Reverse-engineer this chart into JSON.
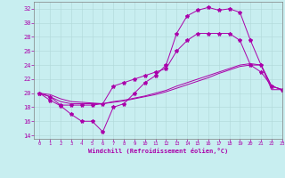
{
  "xlabel": "Windchill (Refroidissement éolien,°C)",
  "background_color": "#c8eef0",
  "line_color": "#aa00aa",
  "xlim": [
    -0.5,
    23
  ],
  "ylim": [
    13.5,
    33
  ],
  "yticks": [
    14,
    16,
    18,
    20,
    22,
    24,
    26,
    28,
    30,
    32
  ],
  "xticks": [
    0,
    1,
    2,
    3,
    4,
    5,
    6,
    7,
    8,
    9,
    10,
    11,
    12,
    13,
    14,
    15,
    16,
    17,
    18,
    19,
    20,
    21,
    22,
    23
  ],
  "series": {
    "line1_x": [
      0,
      1,
      2,
      3,
      4,
      5,
      6,
      7,
      8,
      9,
      10,
      11,
      12,
      13,
      14,
      15,
      16,
      17,
      18,
      19,
      20,
      21,
      22,
      23
    ],
    "line1_y": [
      20,
      19,
      18.2,
      17,
      16,
      16,
      14.5,
      18,
      18.5,
      20,
      21.5,
      22.5,
      24,
      28.5,
      31,
      31.8,
      32.2,
      31.8,
      32,
      31.5,
      27.5,
      24,
      21,
      20.5
    ],
    "line2_x": [
      0,
      1,
      2,
      3,
      4,
      5,
      6,
      7,
      8,
      9,
      10,
      11,
      12,
      13,
      14,
      15,
      16,
      17,
      18,
      19,
      20,
      21,
      22,
      23
    ],
    "line2_y": [
      20,
      19.5,
      18.3,
      18.3,
      18.3,
      18.3,
      18.5,
      21,
      21.5,
      22,
      22.5,
      23,
      23.5,
      26,
      27.5,
      28.5,
      28.5,
      28.5,
      28.5,
      27.5,
      24,
      23,
      21,
      20.5
    ],
    "line3_x": [
      0,
      1,
      2,
      3,
      4,
      5,
      6,
      7,
      8,
      9,
      10,
      11,
      12,
      13,
      14,
      15,
      16,
      17,
      18,
      19,
      20,
      21,
      22,
      23
    ],
    "line3_y": [
      20,
      19.8,
      19.2,
      18.8,
      18.7,
      18.6,
      18.5,
      18.8,
      19.0,
      19.3,
      19.6,
      20.0,
      20.4,
      21.0,
      21.5,
      22.0,
      22.5,
      23.0,
      23.5,
      24.0,
      24.2,
      24.0,
      21.0,
      20.5
    ],
    "line4_x": [
      0,
      1,
      2,
      3,
      4,
      5,
      6,
      7,
      8,
      9,
      10,
      11,
      12,
      13,
      14,
      15,
      16,
      17,
      18,
      19,
      20,
      21,
      22,
      23
    ],
    "line4_y": [
      20,
      19.5,
      18.8,
      18.5,
      18.5,
      18.5,
      18.5,
      18.7,
      18.9,
      19.2,
      19.5,
      19.8,
      20.2,
      20.7,
      21.2,
      21.7,
      22.2,
      22.8,
      23.3,
      23.8,
      24.0,
      24.0,
      20.5,
      20.5
    ]
  }
}
